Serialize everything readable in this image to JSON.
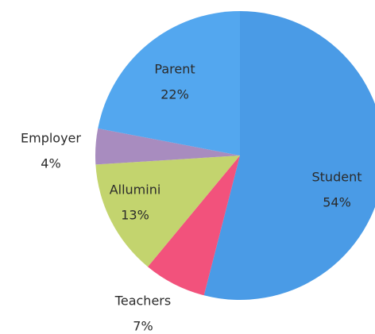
{
  "chart_data": {
    "type": "pie",
    "categories": [
      "Student",
      "Teachers",
      "Allumini",
      "Employer",
      "Parent"
    ],
    "values": [
      54,
      7,
      13,
      4,
      22
    ],
    "value_labels": [
      "54%",
      "7%",
      "13%",
      "4%",
      "22%"
    ],
    "colors": [
      "#4a9be6",
      "#f2527c",
      "#c3d46e",
      "#a88cbf",
      "#53a7ef"
    ]
  }
}
